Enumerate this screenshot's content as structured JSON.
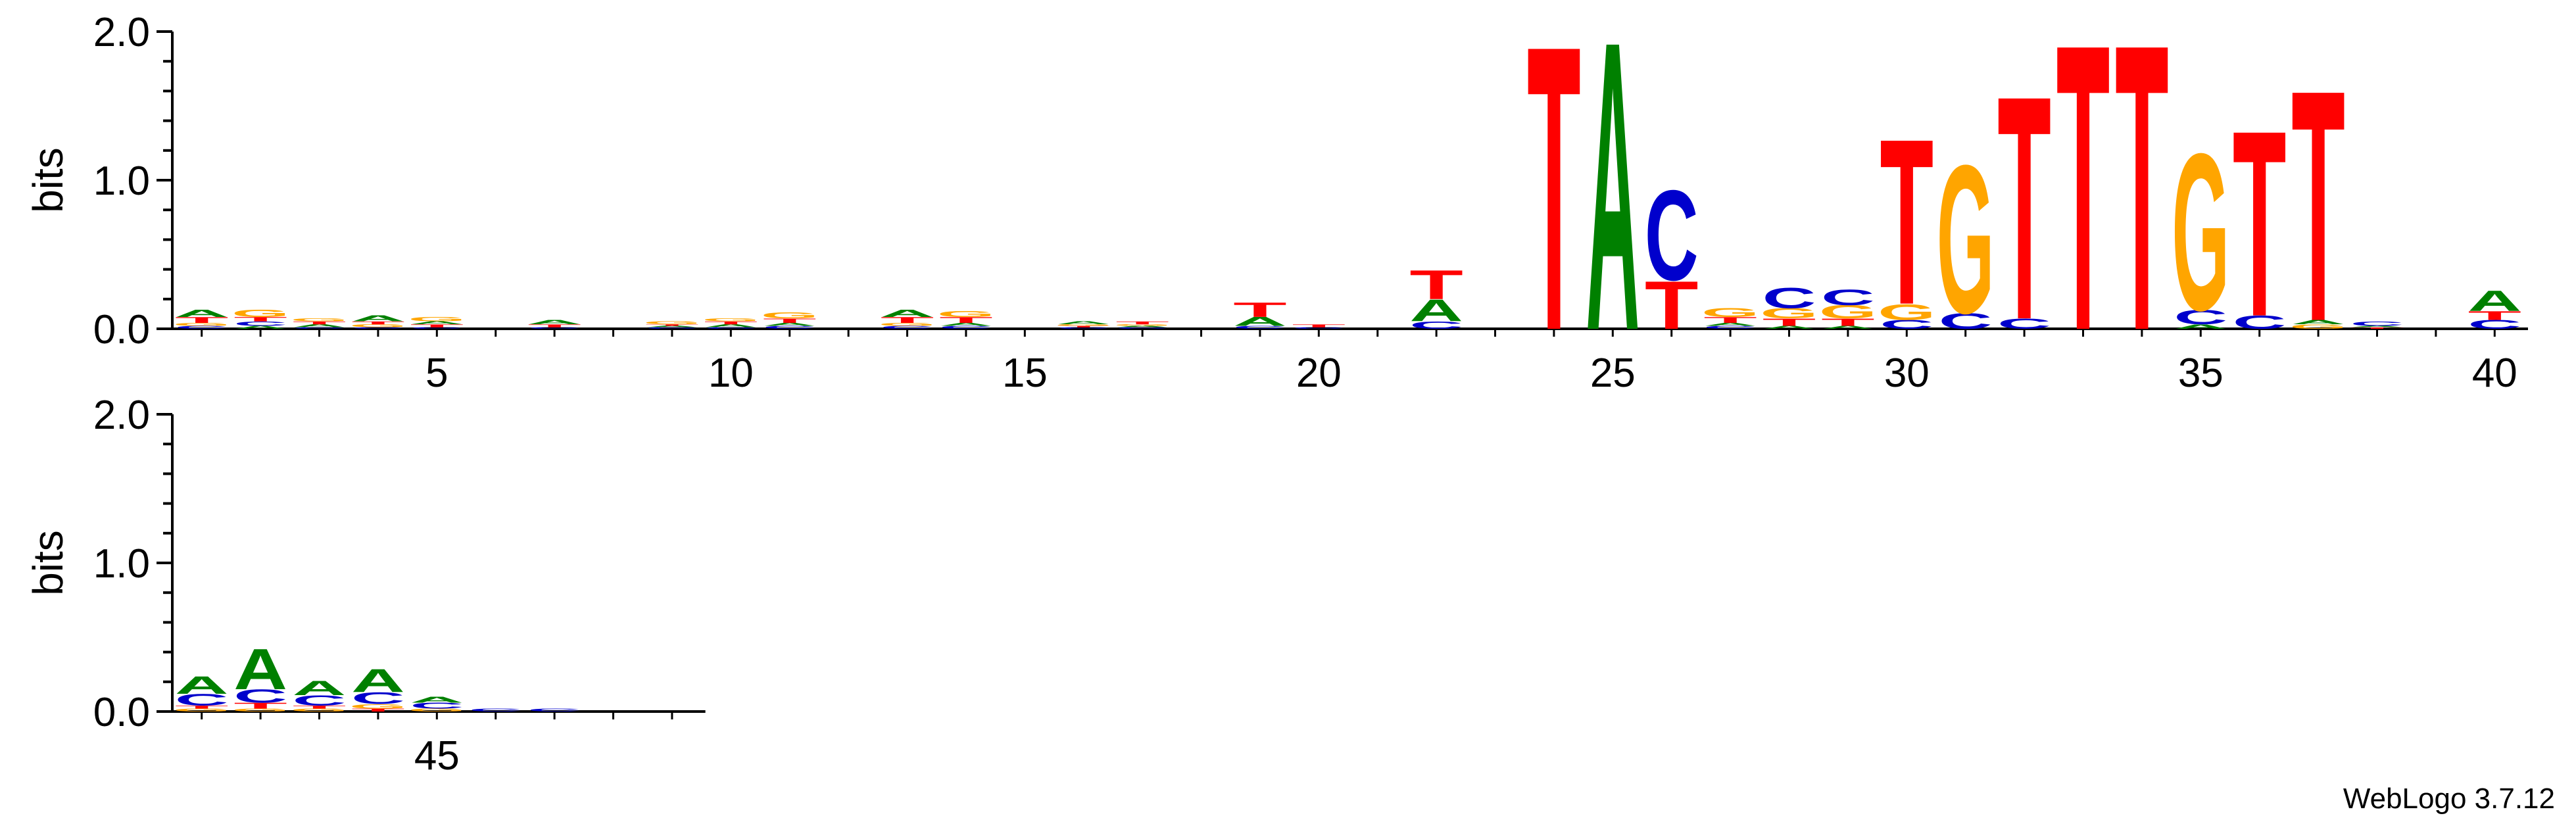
{
  "version_label": "WebLogo 3.7.12",
  "colors": {
    "A": "#008000",
    "C": "#0000CC",
    "G": "#FFA500",
    "T": "#FF0000"
  },
  "chart_data": {
    "type": "sequence-logo",
    "ylabel": "bits",
    "ylim": [
      0,
      2.0
    ],
    "yticks": [
      "0.0",
      "1.0",
      "2.0"
    ],
    "rows": [
      {
        "positions": [
          1,
          40
        ],
        "xtick_labels": [
          "5",
          "10",
          "15",
          "20",
          "25",
          "30",
          "35",
          "40"
        ]
      },
      {
        "positions": [
          41,
          49
        ],
        "xtick_labels": [
          "45"
        ]
      }
    ],
    "columns": [
      {
        "pos": 1,
        "letters": [
          {
            "l": "C",
            "h": 0.02
          },
          {
            "l": "G",
            "h": 0.02
          },
          {
            "l": "T",
            "h": 0.04
          },
          {
            "l": "A",
            "h": 0.05
          }
        ]
      },
      {
        "pos": 2,
        "letters": [
          {
            "l": "A",
            "h": 0.02
          },
          {
            "l": "C",
            "h": 0.03
          },
          {
            "l": "T",
            "h": 0.03
          },
          {
            "l": "G",
            "h": 0.05
          }
        ]
      },
      {
        "pos": 3,
        "letters": [
          {
            "l": "C",
            "h": 0.01
          },
          {
            "l": "A",
            "h": 0.02
          },
          {
            "l": "T",
            "h": 0.02
          },
          {
            "l": "G",
            "h": 0.02
          }
        ]
      },
      {
        "pos": 4,
        "letters": [
          {
            "l": "C",
            "h": 0.01
          },
          {
            "l": "G",
            "h": 0.02
          },
          {
            "l": "T",
            "h": 0.02
          },
          {
            "l": "A",
            "h": 0.04
          }
        ]
      },
      {
        "pos": 5,
        "letters": [
          {
            "l": "C",
            "h": 0.01
          },
          {
            "l": "T",
            "h": 0.02
          },
          {
            "l": "A",
            "h": 0.02
          },
          {
            "l": "G",
            "h": 0.03
          }
        ]
      },
      {
        "pos": 6,
        "letters": []
      },
      {
        "pos": 7,
        "letters": [
          {
            "l": "C",
            "h": 0.01
          },
          {
            "l": "T",
            "h": 0.02
          },
          {
            "l": "A",
            "h": 0.03
          }
        ]
      },
      {
        "pos": 8,
        "letters": []
      },
      {
        "pos": 9,
        "letters": [
          {
            "l": "C",
            "h": 0.01
          },
          {
            "l": "A",
            "h": 0.01
          },
          {
            "l": "T",
            "h": 0.01
          },
          {
            "l": "G",
            "h": 0.02
          }
        ]
      },
      {
        "pos": 10,
        "letters": [
          {
            "l": "C",
            "h": 0.01
          },
          {
            "l": "A",
            "h": 0.02
          },
          {
            "l": "T",
            "h": 0.02
          },
          {
            "l": "G",
            "h": 0.02
          }
        ]
      },
      {
        "pos": 11,
        "letters": [
          {
            "l": "C",
            "h": 0.02
          },
          {
            "l": "A",
            "h": 0.02
          },
          {
            "l": "T",
            "h": 0.03
          },
          {
            "l": "G",
            "h": 0.04
          }
        ]
      },
      {
        "pos": 12,
        "letters": []
      },
      {
        "pos": 13,
        "letters": [
          {
            "l": "C",
            "h": 0.02
          },
          {
            "l": "G",
            "h": 0.02
          },
          {
            "l": "T",
            "h": 0.04
          },
          {
            "l": "A",
            "h": 0.05
          }
        ]
      },
      {
        "pos": 14,
        "letters": [
          {
            "l": "C",
            "h": 0.02
          },
          {
            "l": "A",
            "h": 0.02
          },
          {
            "l": "T",
            "h": 0.04
          },
          {
            "l": "G",
            "h": 0.04
          }
        ]
      },
      {
        "pos": 15,
        "letters": []
      },
      {
        "pos": 16,
        "letters": [
          {
            "l": "C",
            "h": 0.01
          },
          {
            "l": "T",
            "h": 0.01
          },
          {
            "l": "G",
            "h": 0.01
          },
          {
            "l": "A",
            "h": 0.02
          }
        ]
      },
      {
        "pos": 17,
        "letters": [
          {
            "l": "C",
            "h": 0.01
          },
          {
            "l": "A",
            "h": 0.01
          },
          {
            "l": "G",
            "h": 0.01
          },
          {
            "l": "T",
            "h": 0.02
          }
        ]
      },
      {
        "pos": 18,
        "letters": []
      },
      {
        "pos": 19,
        "letters": [
          {
            "l": "C",
            "h": 0.02
          },
          {
            "l": "A",
            "h": 0.06
          },
          {
            "l": "T",
            "h": 0.1
          }
        ]
      },
      {
        "pos": 20,
        "letters": [
          {
            "l": "C",
            "h": 0.01
          },
          {
            "l": "T",
            "h": 0.02
          }
        ]
      },
      {
        "pos": 21,
        "letters": []
      },
      {
        "pos": 22,
        "letters": [
          {
            "l": "C",
            "h": 0.05
          },
          {
            "l": "A",
            "h": 0.15
          },
          {
            "l": "T",
            "h": 0.2
          }
        ]
      },
      {
        "pos": 23,
        "letters": []
      },
      {
        "pos": 24,
        "letters": [
          {
            "l": "T",
            "h": 1.96
          }
        ]
      },
      {
        "pos": 25,
        "letters": [
          {
            "l": "A",
            "h": 1.99
          }
        ]
      },
      {
        "pos": 26,
        "letters": [
          {
            "l": "T",
            "h": 0.33
          },
          {
            "l": "C",
            "h": 0.62
          }
        ]
      },
      {
        "pos": 27,
        "letters": [
          {
            "l": "C",
            "h": 0.02
          },
          {
            "l": "A",
            "h": 0.02
          },
          {
            "l": "T",
            "h": 0.04
          },
          {
            "l": "G",
            "h": 0.06
          }
        ]
      },
      {
        "pos": 28,
        "letters": [
          {
            "l": "A",
            "h": 0.02
          },
          {
            "l": "T",
            "h": 0.05
          },
          {
            "l": "G",
            "h": 0.07
          },
          {
            "l": "C",
            "h": 0.14
          }
        ]
      },
      {
        "pos": 29,
        "letters": [
          {
            "l": "A",
            "h": 0.02
          },
          {
            "l": "T",
            "h": 0.05
          },
          {
            "l": "G",
            "h": 0.09
          },
          {
            "l": "C",
            "h": 0.11
          }
        ]
      },
      {
        "pos": 30,
        "letters": [
          {
            "l": "C",
            "h": 0.06
          },
          {
            "l": "G",
            "h": 0.11
          },
          {
            "l": "T",
            "h": 1.14
          }
        ]
      },
      {
        "pos": 31,
        "letters": [
          {
            "l": "C",
            "h": 0.11
          },
          {
            "l": "G",
            "h": 1.02
          }
        ]
      },
      {
        "pos": 32,
        "letters": [
          {
            "l": "C",
            "h": 0.07
          },
          {
            "l": "T",
            "h": 1.54
          }
        ]
      },
      {
        "pos": 33,
        "letters": [
          {
            "l": "T",
            "h": 1.97
          }
        ]
      },
      {
        "pos": 34,
        "letters": [
          {
            "l": "T",
            "h": 1.97
          }
        ]
      },
      {
        "pos": 35,
        "letters": [
          {
            "l": "A",
            "h": 0.03
          },
          {
            "l": "C",
            "h": 0.1
          },
          {
            "l": "G",
            "h": 1.08
          }
        ]
      },
      {
        "pos": 36,
        "letters": [
          {
            "l": "C",
            "h": 0.09
          },
          {
            "l": "T",
            "h": 1.28
          }
        ]
      },
      {
        "pos": 37,
        "letters": [
          {
            "l": "G",
            "h": 0.03
          },
          {
            "l": "A",
            "h": 0.03
          },
          {
            "l": "T",
            "h": 1.59
          }
        ]
      },
      {
        "pos": 38,
        "letters": [
          {
            "l": "T",
            "h": 0.01
          },
          {
            "l": "A",
            "h": 0.01
          },
          {
            "l": "C",
            "h": 0.03
          }
        ]
      },
      {
        "pos": 39,
        "letters": []
      },
      {
        "pos": 40,
        "letters": [
          {
            "l": "C",
            "h": 0.06
          },
          {
            "l": "T",
            "h": 0.06
          },
          {
            "l": "A",
            "h": 0.14
          }
        ]
      },
      {
        "pos": 41,
        "letters": [
          {
            "l": "G",
            "h": 0.02
          },
          {
            "l": "T",
            "h": 0.02
          },
          {
            "l": "C",
            "h": 0.08
          },
          {
            "l": "A",
            "h": 0.12
          }
        ]
      },
      {
        "pos": 42,
        "letters": [
          {
            "l": "G",
            "h": 0.02
          },
          {
            "l": "T",
            "h": 0.04
          },
          {
            "l": "C",
            "h": 0.09
          },
          {
            "l": "A",
            "h": 0.28
          }
        ]
      },
      {
        "pos": 43,
        "letters": [
          {
            "l": "G",
            "h": 0.02
          },
          {
            "l": "T",
            "h": 0.02
          },
          {
            "l": "C",
            "h": 0.07
          },
          {
            "l": "A",
            "h": 0.1
          }
        ]
      },
      {
        "pos": 44,
        "letters": [
          {
            "l": "T",
            "h": 0.02
          },
          {
            "l": "G",
            "h": 0.03
          },
          {
            "l": "C",
            "h": 0.08
          },
          {
            "l": "A",
            "h": 0.16
          }
        ]
      },
      {
        "pos": 45,
        "letters": [
          {
            "l": "G",
            "h": 0.02
          },
          {
            "l": "C",
            "h": 0.04
          },
          {
            "l": "A",
            "h": 0.04
          }
        ]
      },
      {
        "pos": 46,
        "letters": [
          {
            "l": "C",
            "h": 0.02
          }
        ]
      },
      {
        "pos": 47,
        "letters": [
          {
            "l": "C",
            "h": 0.02
          }
        ]
      },
      {
        "pos": 48,
        "letters": []
      },
      {
        "pos": 49,
        "letters": []
      }
    ]
  }
}
